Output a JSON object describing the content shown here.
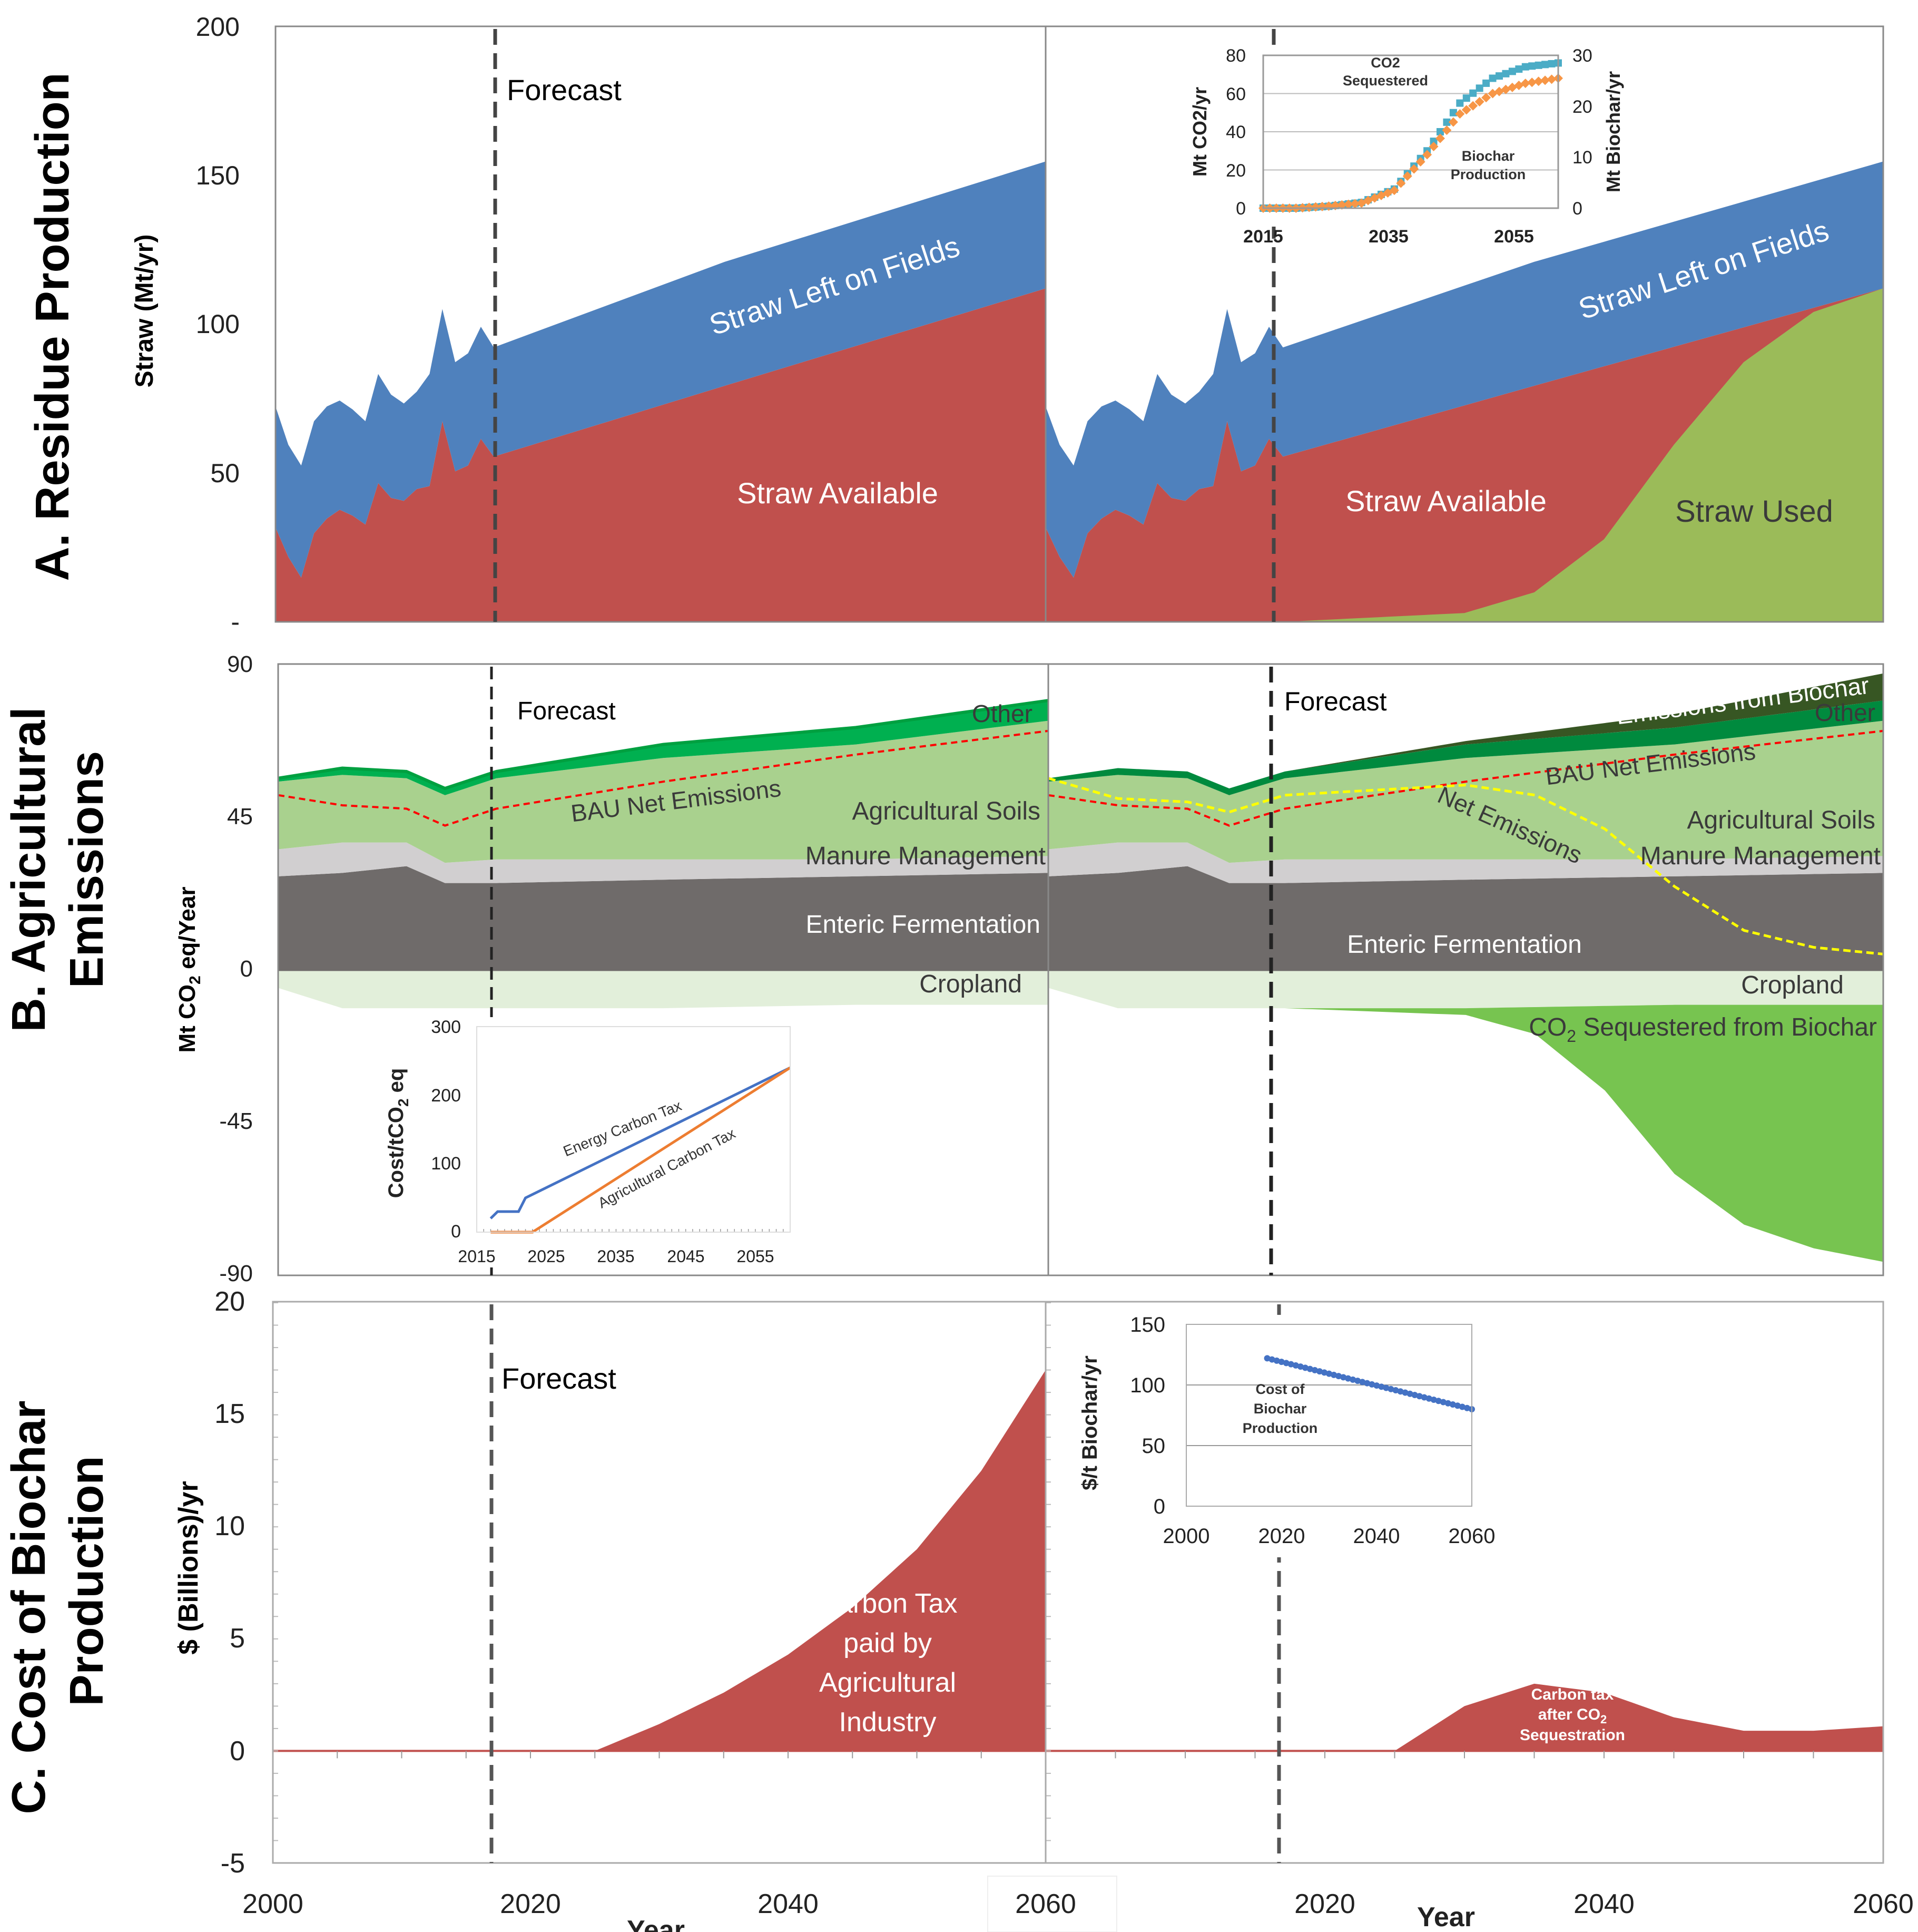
{
  "panel_titles": {
    "a": "A. Residue Production",
    "b_line1": "B. Agricultural",
    "b_line2": "Emissions",
    "c_line1": "C.  Cost of Biochar",
    "c_line2": "Production"
  },
  "forecast_label": "Forecast",
  "colors": {
    "straw_available": "#C0504D",
    "straw_left": "#4F81BD",
    "straw_used": "#9BBB59",
    "enteric": "#6F6B6A",
    "manure": "#D1CFD0",
    "soils": "#A9D18E",
    "other": "#00B050",
    "other_right": "#008A3E",
    "emissions_biochar": "#375623",
    "cropland": "#E2EFDA",
    "sequestered": "#77C450",
    "bau_line": "#FF0000",
    "net_line": "#FFFF00",
    "carbon_tax": "#C0504D",
    "inset_co2": "#4BACC6",
    "inset_biochar": "#F79646",
    "energy_tax": "#4472C4",
    "ag_tax": "#ED7D31",
    "cost_line": "#4472C4"
  },
  "chart_data": [
    {
      "id": "A-left",
      "type": "area",
      "ylabel": "Straw (Mt/yr)",
      "ylim": [
        0,
        200
      ],
      "yticks": [
        "200",
        "150",
        "100",
        "50",
        "-"
      ],
      "xlim": [
        2000,
        2060
      ],
      "x": [
        2000,
        2001,
        2002,
        2003,
        2004,
        2005,
        2006,
        2007,
        2008,
        2009,
        2010,
        2011,
        2012,
        2013,
        2014,
        2015,
        2016,
        2017,
        2035,
        2060
      ],
      "series": [
        {
          "name": "Straw Available",
          "values": [
            32,
            22,
            15,
            30,
            35,
            38,
            36,
            33,
            47,
            42,
            41,
            45,
            46,
            68,
            51,
            53,
            62,
            56,
            80,
            113
          ]
        },
        {
          "name": "Straw Left on Fields",
          "values": [
            41,
            38,
            38,
            38,
            38,
            37,
            36,
            35,
            37,
            35,
            33,
            33,
            38,
            38,
            37,
            38,
            38,
            37,
            42,
            43
          ]
        }
      ],
      "labels": {
        "available": "Straw Available",
        "left": "Straw Left on Fields"
      }
    },
    {
      "id": "A-right",
      "type": "area",
      "ylim": [
        0,
        200
      ],
      "xlim": [
        2000,
        2060
      ],
      "x": [
        2000,
        2001,
        2002,
        2003,
        2004,
        2005,
        2006,
        2007,
        2008,
        2009,
        2010,
        2011,
        2012,
        2013,
        2014,
        2015,
        2016,
        2017,
        2035,
        2060
      ],
      "series": [
        {
          "name": "Straw Available",
          "values": [
            32,
            22,
            15,
            30,
            35,
            38,
            36,
            33,
            47,
            42,
            41,
            45,
            46,
            68,
            51,
            53,
            62,
            56,
            80,
            113
          ]
        },
        {
          "name": "Straw Left on Fields",
          "values": [
            41,
            38,
            38,
            38,
            38,
            37,
            36,
            35,
            37,
            35,
            33,
            33,
            38,
            38,
            37,
            38,
            38,
            37,
            42,
            43
          ]
        }
      ],
      "straw_used": {
        "x": [
          2017,
          2030,
          2035,
          2040,
          2045,
          2050,
          2055,
          2060
        ],
        "values": [
          0,
          3,
          10,
          28,
          60,
          88,
          105,
          113
        ]
      },
      "labels": {
        "available": "Straw Available",
        "left": "Straw Left on Fields",
        "used": "Straw Used"
      }
    },
    {
      "id": "A-inset",
      "type": "scatter",
      "ylabel": "Mt CO2/yr",
      "y2label": "Mt Biochar/yr",
      "ylim": [
        0,
        80
      ],
      "y2lim": [
        0,
        30
      ],
      "yticks": [
        "80",
        "60",
        "40",
        "20",
        "0"
      ],
      "y2ticks": [
        "30",
        "20",
        "10",
        "0"
      ],
      "xticks": [
        "2015",
        "2035",
        "2055"
      ],
      "xlim": [
        2015,
        2060
      ],
      "series": [
        {
          "name": "CO2 Sequestered",
          "label_line1": "CO2",
          "label_line2": "Sequestered",
          "x": [
            2015,
            2020,
            2025,
            2030,
            2035,
            2040,
            2045,
            2050,
            2055,
            2060
          ],
          "values": [
            0,
            0,
            1,
            3,
            10,
            30,
            55,
            68,
            74,
            76
          ]
        },
        {
          "name": "Biochar Production",
          "label_line1": "Biochar",
          "label_line2": "Production",
          "x": [
            2015,
            2020,
            2025,
            2030,
            2035,
            2040,
            2045,
            2050,
            2055,
            2060
          ],
          "values": [
            0,
            0,
            0.4,
            1,
            3.5,
            10.5,
            18.5,
            22.5,
            24.5,
            25.5
          ]
        }
      ]
    },
    {
      "id": "B-left",
      "type": "area",
      "ylabel": "Mt CO2 eq/Year",
      "ylim": [
        -90,
        90
      ],
      "yticks": [
        "90",
        "45",
        "0",
        "-45",
        "-90"
      ],
      "x": [
        2000,
        2005,
        2010,
        2013,
        2017,
        2030,
        2045,
        2060
      ],
      "series": [
        {
          "name": "Enteric Fermentation",
          "values": [
            28,
            29,
            31,
            26,
            26,
            27,
            28,
            29
          ]
        },
        {
          "name": "Manure Management",
          "values": [
            8,
            9,
            7,
            6,
            7,
            6,
            5,
            5
          ]
        },
        {
          "name": "Agricultural Soils",
          "values": [
            20,
            20,
            19,
            20,
            24,
            30,
            34,
            40
          ]
        },
        {
          "name": "Other",
          "values": [
            1,
            2,
            2,
            2,
            2,
            4,
            5,
            6
          ]
        },
        {
          "name": "Cropland",
          "values": [
            -5,
            -11,
            -11,
            -11,
            -11,
            -11,
            -10,
            -10
          ]
        }
      ],
      "bau_net": {
        "name": "BAU Net Emissions",
        "values": [
          52,
          49,
          48,
          43,
          48,
          56,
          64,
          71
        ]
      },
      "labels": {
        "other": "Other",
        "bau": "BAU Net Emissions",
        "soils": "Agricultural Soils",
        "manure": "Manure Management",
        "enteric": "Enteric Fermentation",
        "cropland": "Cropland"
      }
    },
    {
      "id": "B-right",
      "type": "area",
      "ylim": [
        -90,
        90
      ],
      "x": [
        2000,
        2005,
        2010,
        2013,
        2017,
        2030,
        2045,
        2060
      ],
      "series": [
        {
          "name": "Enteric Fermentation",
          "values": [
            28,
            29,
            31,
            26,
            26,
            27,
            28,
            29
          ]
        },
        {
          "name": "Manure Management",
          "values": [
            8,
            9,
            7,
            6,
            7,
            6,
            5,
            5
          ]
        },
        {
          "name": "Agricultural Soils",
          "values": [
            20,
            20,
            19,
            20,
            24,
            30,
            34,
            40
          ]
        },
        {
          "name": "Other",
          "values": [
            1,
            2,
            2,
            2,
            2,
            4,
            5,
            6
          ]
        },
        {
          "name": "Emissions from Biochar",
          "x": [
            2017,
            2030,
            2045,
            2060
          ],
          "values": [
            0,
            1,
            4,
            8
          ]
        },
        {
          "name": "Cropland",
          "values": [
            -5,
            -11,
            -11,
            -11,
            -11,
            -11,
            -10,
            -10
          ]
        },
        {
          "name": "CO2 Sequestered from Biochar",
          "x": [
            2017,
            2030,
            2035,
            2040,
            2045,
            2050,
            2055,
            2060
          ],
          "values": [
            0,
            -2,
            -8,
            -25,
            -50,
            -65,
            -72,
            -76
          ]
        }
      ],
      "bau_net": {
        "name": "BAU Net Emissions",
        "values": [
          52,
          49,
          48,
          43,
          48,
          56,
          64,
          71
        ]
      },
      "net": {
        "name": "Net Emissions",
        "x": [
          2000,
          2005,
          2010,
          2013,
          2017,
          2030,
          2035,
          2040,
          2045,
          2050,
          2055,
          2060
        ],
        "values": [
          57,
          51,
          50,
          47,
          52,
          55,
          52,
          42,
          25,
          12,
          7,
          5
        ]
      },
      "labels": {
        "biochar": "Emissions from Biochar",
        "other": "Other",
        "bau": "BAU Net Emissions",
        "net": "Net Emissions",
        "soils": "Agricultural Soils",
        "manure": "Manure Management",
        "enteric": "Enteric Fermentation",
        "cropland": "Cropland",
        "seq_pre": "CO",
        "seq_sub": "2",
        "seq_post": " Sequestered from Biochar"
      }
    },
    {
      "id": "B-inset",
      "type": "line",
      "ylabel": "Cost/tCO2 eq",
      "ylim": [
        0,
        300
      ],
      "yticks": [
        "300",
        "200",
        "100",
        "0"
      ],
      "xlim": [
        2015,
        2060
      ],
      "xticks": [
        "2015",
        "2025",
        "2035",
        "2045",
        "2055"
      ],
      "series": [
        {
          "name": "Energy Carbon Tax",
          "x": [
            2017,
            2018,
            2021,
            2022,
            2060
          ],
          "values": [
            20,
            30,
            30,
            50,
            240
          ]
        },
        {
          "name": "Agricultural Carbon Tax",
          "x": [
            2017,
            2023,
            2060
          ],
          "values": [
            0,
            0,
            240
          ]
        }
      ]
    },
    {
      "id": "C-left",
      "type": "area",
      "ylabel": "$ (Billions)/yr",
      "ylim": [
        -5,
        20
      ],
      "yticks": [
        "20",
        "15",
        "10",
        "5",
        "0",
        "-5"
      ],
      "xticks": [
        "2000",
        "2020",
        "2040",
        "2060"
      ],
      "xlabel": "Year",
      "x": [
        2000,
        2025,
        2030,
        2035,
        2040,
        2045,
        2050,
        2055,
        2060
      ],
      "values": [
        0,
        0,
        1.2,
        2.6,
        4.3,
        6.4,
        9,
        12.5,
        17
      ],
      "label": [
        "Carbon Tax",
        "paid by",
        "Agricultural",
        "Industry"
      ]
    },
    {
      "id": "C-right",
      "type": "area",
      "ylim": [
        -5,
        20
      ],
      "xticks": [
        "2020",
        "2040",
        "2060"
      ],
      "xlabel": "Year",
      "x": [
        2000,
        2025,
        2030,
        2035,
        2040,
        2045,
        2050,
        2055,
        2060
      ],
      "values": [
        0,
        0,
        2,
        3,
        2.6,
        1.5,
        0.9,
        0.9,
        1.1
      ],
      "label_line1": "Carbon tax",
      "label_line2": "after CO",
      "label_sub": "2",
      "label_line3": "Sequestration"
    },
    {
      "id": "C-inset",
      "type": "scatter",
      "ylabel": "$/t Biochar/yr",
      "ylim": [
        0,
        150
      ],
      "yticks": [
        "150",
        "100",
        "50",
        "0"
      ],
      "xlim": [
        2000,
        2060
      ],
      "xticks": [
        "2000",
        "2020",
        "2040",
        "2060"
      ],
      "x": [
        2017,
        2060
      ],
      "values": [
        122,
        80
      ],
      "series_label": [
        "Cost of",
        "Biochar",
        "Production"
      ]
    }
  ],
  "year_axis_label": "Year"
}
